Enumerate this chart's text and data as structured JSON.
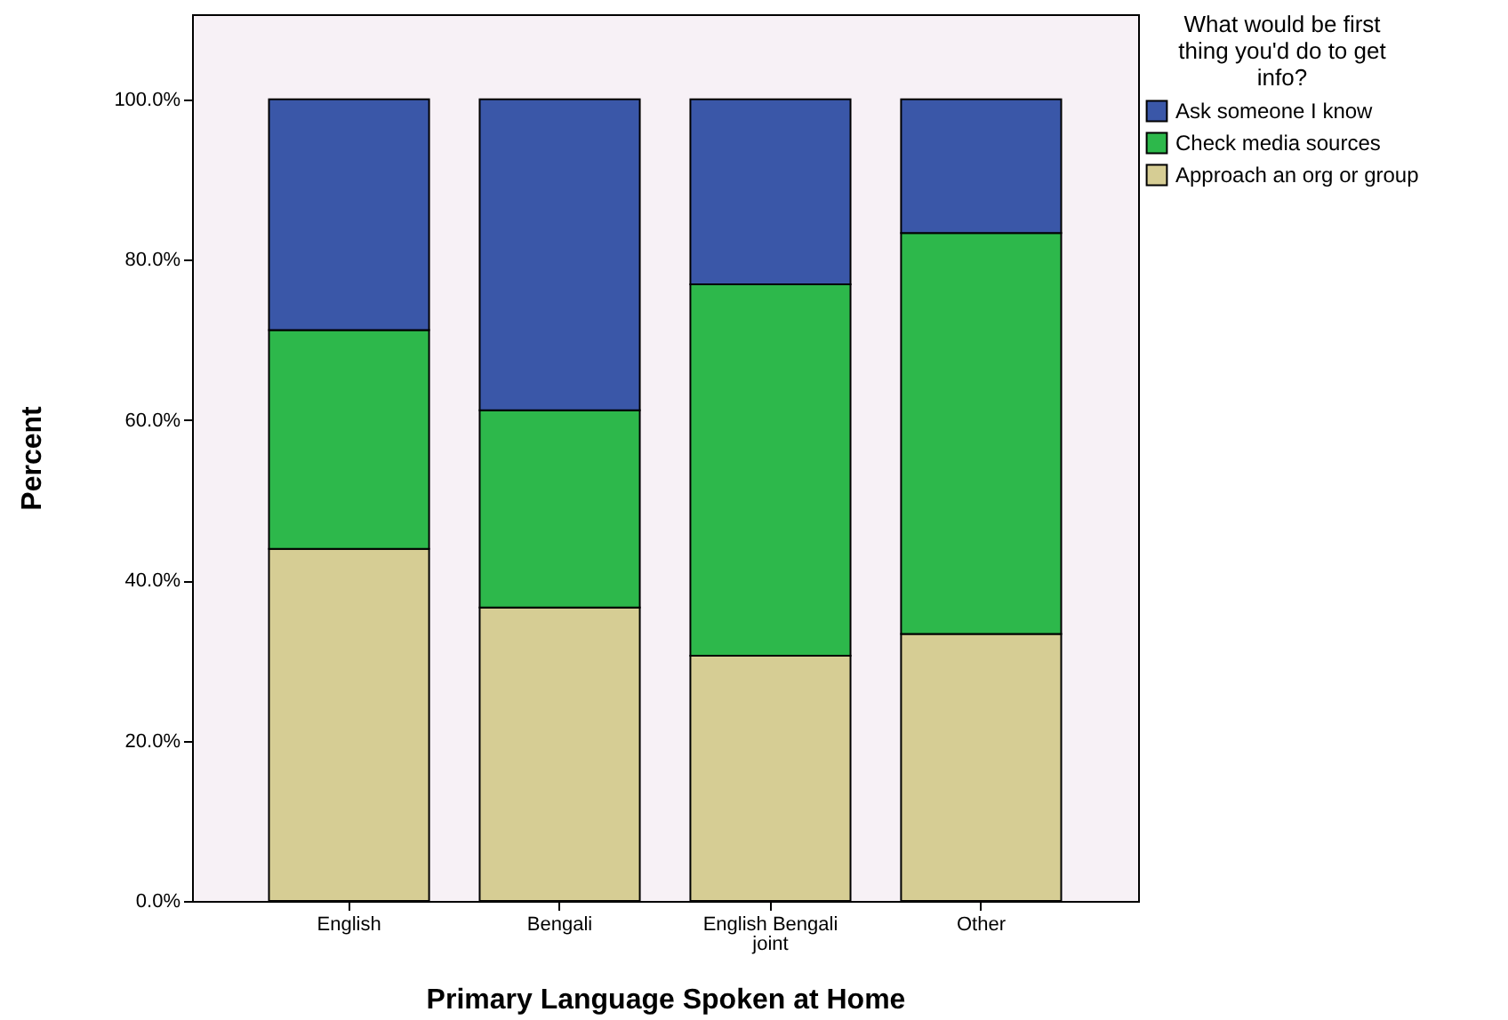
{
  "chart_data": {
    "type": "bar",
    "stacked": true,
    "xlabel": "Primary Language Spoken at Home",
    "ylabel": "Percent",
    "legend_title": "What would be first thing you'd do to get info?",
    "legend": "top right",
    "grid": false,
    "categories": [
      "English",
      "Bengali",
      "English Bengali joint",
      "Other"
    ],
    "series": [
      {
        "name": "Approach an org or group",
        "color": "#d6cd94",
        "values": [
          43.9,
          36.6,
          30.6,
          33.3
        ]
      },
      {
        "name": "Check media sources",
        "color": "#2db84b",
        "values": [
          27.3,
          24.6,
          46.3,
          50.0
        ]
      },
      {
        "name": "Ask someone I know",
        "color": "#3a57a8",
        "values": [
          28.8,
          38.8,
          23.1,
          16.7
        ]
      }
    ],
    "ylim": [
      0,
      110.6
    ],
    "yticks": [
      {
        "value": 0,
        "label": "0.0%"
      },
      {
        "value": 20,
        "label": "20.0%"
      },
      {
        "value": 40,
        "label": "40.0%"
      },
      {
        "value": 60,
        "label": "60.0%"
      },
      {
        "value": 80,
        "label": "80.0%"
      },
      {
        "value": 100,
        "label": "100.0%"
      }
    ]
  }
}
